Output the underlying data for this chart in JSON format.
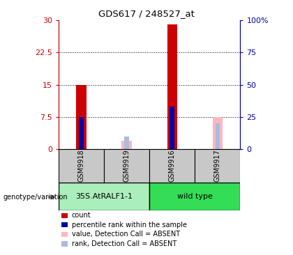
{
  "title": "GDS617 / 248527_at",
  "samples": [
    "GSM9918",
    "GSM9919",
    "GSM9916",
    "GSM9917"
  ],
  "count_values": [
    15.0,
    null,
    29.0,
    null
  ],
  "rank_values": [
    7.5,
    null,
    10.0,
    null
  ],
  "absent_count_values": [
    null,
    2.0,
    null,
    7.5
  ],
  "absent_rank_values": [
    null,
    3.0,
    null,
    6.0
  ],
  "ylim_left": [
    0,
    30
  ],
  "ylim_right": [
    0,
    100
  ],
  "left_ticks": [
    0,
    7.5,
    15,
    22.5,
    30
  ],
  "left_tick_labels": [
    "0",
    "7.5",
    "15",
    "22.5",
    "30"
  ],
  "right_ticks": [
    0,
    25,
    50,
    75,
    100
  ],
  "right_tick_labels": [
    "0",
    "25",
    "50",
    "75",
    "100%"
  ],
  "gridlines": [
    7.5,
    15,
    22.5
  ],
  "bar_width": 0.22,
  "rank_bar_width": 0.1,
  "count_color": "#CC0000",
  "rank_color": "#0000AA",
  "absent_count_color": "#FFB6C1",
  "absent_rank_color": "#AABBDD",
  "left_axis_color": "#CC0000",
  "right_axis_color": "#0000AA",
  "header_row_color": "#C8C8C8",
  "group_info": [
    {
      "label": "35S.AtRALF1-1",
      "start": 0,
      "end": 2,
      "color": "#AAEEBB"
    },
    {
      "label": "wild type",
      "start": 2,
      "end": 4,
      "color": "#33DD55"
    }
  ],
  "genotype_label": "genotype/variation",
  "legend_items": [
    {
      "color": "#CC0000",
      "label": "count"
    },
    {
      "color": "#0000AA",
      "label": "percentile rank within the sample"
    },
    {
      "color": "#FFB6C1",
      "label": "value, Detection Call = ABSENT"
    },
    {
      "color": "#AABBDD",
      "label": "rank, Detection Call = ABSENT"
    }
  ]
}
